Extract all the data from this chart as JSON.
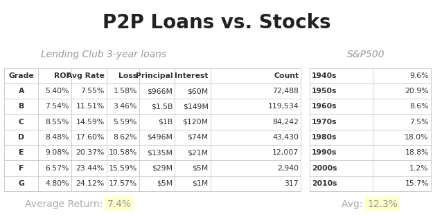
{
  "title": "P2P Loans vs. Stocks",
  "subtitle_left": "Lending Club 3-year loans",
  "subtitle_right": "S&P500",
  "lc_headers": [
    "Grade",
    "ROI",
    "Avg Rate",
    "Loss",
    "Principal",
    "Interest",
    "Count"
  ],
  "lc_data": [
    [
      "A",
      "5.40%",
      "7.55%",
      "1.58%",
      "$966M",
      "$60M",
      "72,488"
    ],
    [
      "B",
      "7.54%",
      "11.51%",
      "3.46%",
      "$1.5B",
      "$149M",
      "119,534"
    ],
    [
      "C",
      "8.55%",
      "14.59%",
      "5.59%",
      "$1B",
      "$120M",
      "84,242"
    ],
    [
      "D",
      "8.48%",
      "17.60%",
      "8.62%",
      "$496M",
      "$74M",
      "43,430"
    ],
    [
      "E",
      "9.08%",
      "20.37%",
      "10.58%",
      "$135M",
      "$21M",
      "12,007"
    ],
    [
      "F",
      "6.57%",
      "23.44%",
      "15.59%",
      "$29M",
      "$5M",
      "2,940"
    ],
    [
      "G",
      "4.80%",
      "24.12%",
      "17.57%",
      "$5M",
      "$1M",
      "317"
    ]
  ],
  "sp_data": [
    [
      "1940s",
      "9.6%"
    ],
    [
      "1950s",
      "20.9%"
    ],
    [
      "1960s",
      "8.6%"
    ],
    [
      "1970s",
      "7.5%"
    ],
    [
      "1980s",
      "18.0%"
    ],
    [
      "1990s",
      "18.8%"
    ],
    [
      "2000s",
      "1.2%"
    ],
    [
      "2010s",
      "15.7%"
    ]
  ],
  "avg_return_label": "Average Return: ",
  "avg_return_value": "7.4%",
  "avg_sp_label": "Avg: ",
  "avg_sp_value": "12.3%",
  "highlight_color": "#ffffcc",
  "border_color": "#bbbbbb",
  "bg_color": "#ffffff",
  "title_color": "#222222",
  "subtitle_color": "#999999",
  "table_text_color": "#333333",
  "avg_label_color": "#aaaaaa",
  "avg_value_color": "#999999",
  "lc_col_aligns": [
    "center",
    "right",
    "right",
    "right",
    "right",
    "right",
    "right"
  ],
  "sp_col_aligns": [
    "left",
    "right"
  ]
}
